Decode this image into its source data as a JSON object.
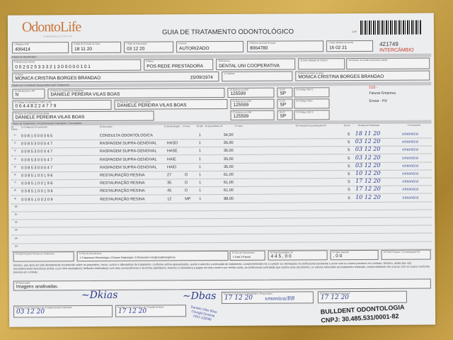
{
  "header": {
    "logo": "OdontoLife",
    "logo_tagline": "tranquilidade para você sorrir",
    "title": "GUIA DE TRATAMENTO ODONTOLÓGICO",
    "page_ref": "2-Nº",
    "guide_number": "421749",
    "guide_status": "INTERCÂMBIO"
  },
  "fields": {
    "registro_ans": {
      "label": "1-Registro ANS",
      "value": "406414"
    },
    "data_emissao": {
      "label": "3-Data de Emissão da Guia",
      "value": "18 11 20"
    },
    "data_autorizacao": {
      "label": "4-Data da Autorização",
      "value": "03 12 20"
    },
    "senha": {
      "label": "5-Senha",
      "value": "AUTORIZADO"
    },
    "guia_principal": {
      "label": "6-Número da Guia Principal",
      "value": "8064780"
    },
    "validade_senha": {
      "label": "7-Data Validade da Senha",
      "value": "16 02 21"
    },
    "carteira": {
      "label": "8-Número da Carteira",
      "value": "0 0 2 0 2 5 3 3 3 2 1 3 0 0 0 0 0 1 0 1"
    },
    "plano": {
      "label": "9-Plano",
      "value": "POS REDE PRESTADORA"
    },
    "empresa": {
      "label": "10-Empresa",
      "value": "DENTAL UNI  COOPERATIVA"
    },
    "validade_carteira": {
      "label": "11-Data Validade da Carteira",
      "value": ""
    },
    "cartao_sus": {
      "label": "12-Número do Cartão Nacional de Saúde",
      "value": ""
    },
    "nome": {
      "label": "13-Nome",
      "value": "MONICA CRISTINA BORGES BRANDAO"
    },
    "nascimento": "15/09/1974",
    "telefone": {
      "label": "14-Telefone",
      "value": ""
    },
    "titular": {
      "label": "15-Nome do titular do plano",
      "value": "MONICA CRISTINA BORGES BRANDAO"
    },
    "atendimento_rn": {
      "label": "16-Atendimento a RN",
      "value": "N"
    },
    "profissional_solicitante": {
      "label": "17-Nome do Profissional Solicitante",
      "value": "DANIELE PEREIRA VILAS BOAS"
    },
    "cro": {
      "label": "18-Número no CRO",
      "value": "125599"
    },
    "uf": {
      "label": "19-UF",
      "value": "SP"
    },
    "cbo": {
      "label": "20-Código CBO S",
      "value": ""
    },
    "codigo_operadora": {
      "label": "21-Código na Operadora / CNPJ / CPF",
      "value": "0 6 4 4 8 2 2 4 7 7 9"
    },
    "contratado_executante": {
      "label": "22-Nome do Contratado Executante",
      "value": "DANIELE PEREIRA VILAS BOAS"
    },
    "cro2": {
      "label": "23-Número no CRO",
      "value": "125599"
    },
    "uf2": {
      "label": "24-UF",
      "value": "SP"
    },
    "cnes": {
      "label": "25-Código CNES",
      "value": ""
    },
    "profissional_executante": {
      "label": "26-Nome do Profissional Executante",
      "value": "DANIELE PEREIRA VILAS BOAS"
    },
    "cro3": {
      "label": "27-Número no CRO",
      "value": "125599"
    },
    "uf3": {
      "label": "28-UF",
      "value": "SP"
    },
    "cbo3": {
      "label": "29-Código CBO S",
      "value": ""
    },
    "side_notes": [
      "D25 -",
      "Faturar Empresa",
      "Enviar - RX"
    ]
  },
  "sections": {
    "beneficiario": "Dados do Beneficiário",
    "contratado": "Dados do Contratado Responsável pelo Tratamento",
    "plano_tratamento": "Plano de Tratamento / Procedimentos Solicitados / Executados"
  },
  "table": {
    "headers": [
      "30-Tabela",
      "31-Código do Procedimento",
      "32-Descrição",
      "33-Dente/Região",
      "34-Face",
      "35-Qtd",
      "36-Quantidade US",
      "37-Valor",
      "38-Franquia/Co-participação R$",
      "39-Aut",
      "40-Data de Realização",
      "41-Assinatura"
    ],
    "rows": [
      {
        "code": "0 0 8 1 0 0 0 0 6 5",
        "desc": "CONSULTA ODONTOLOGICA",
        "region": "",
        "face": "",
        "qty": "1",
        "value": "34,00",
        "aut": "S",
        "date": "18 11 20",
        "sign": "xmonica"
      },
      {
        "code": "0 0 8 5 3 0 0 0 4 7",
        "desc": "RASPAGEM SUPRA-GENGIVAL",
        "region": "HASD",
        "face": "",
        "qty": "1",
        "value": "35,00",
        "aut": "S",
        "date": "03 12 20",
        "sign": "xmonica"
      },
      {
        "code": "0 0 8 5 3 0 0 0 4 7",
        "desc": "RASPAGEM SUPRA-GENGIVAL",
        "region": "HASE",
        "face": "",
        "qty": "1",
        "value": "35,00",
        "aut": "S",
        "date": "03 12 20",
        "sign": "xmonica"
      },
      {
        "code": "0 0 8 5 3 0 0 0 4 7",
        "desc": "RASPAGEM SUPRA-GENGIVAL",
        "region": "HAIE",
        "face": "",
        "qty": "1",
        "value": "35,00",
        "aut": "S",
        "date": "03 12 20",
        "sign": "xmonica"
      },
      {
        "code": "0 0 8 5 3 0 0 0 4 7",
        "desc": "RASPAGEM SUPRA-GENGIVAL",
        "region": "HAID",
        "face": "",
        "qty": "1",
        "value": "35,00",
        "aut": "S",
        "date": "03 12 20",
        "sign": "xmonica"
      },
      {
        "code": "0 0 8 5 1 0 0 1 9 6",
        "desc": "RESTAURAÇÃO RESINA",
        "region": "27",
        "face": "O",
        "qty": "1",
        "value": "61,00",
        "aut": "S",
        "date": "10 12 20",
        "sign": "xmonica"
      },
      {
        "code": "0 0 8 5 1 0 0 1 9 6",
        "desc": "RESTAURAÇÃO RESINA",
        "region": "35",
        "face": "D",
        "qty": "1",
        "value": "61,00",
        "aut": "S",
        "date": "17 12 20",
        "sign": "xmonica"
      },
      {
        "code": "0 0 8 5 1 0 0 1 9 6",
        "desc": "RESTAURAÇÃO RESINA",
        "region": "45",
        "face": "D",
        "qty": "1",
        "value": "61,00",
        "aut": "S",
        "date": "17 12 20",
        "sign": "xmonica"
      },
      {
        "code": "0 0 8 5 1 0 0 2 0 9",
        "desc": "RESTAURAÇÃO RESINA",
        "region": "12",
        "face": "MP",
        "qty": "1",
        "value": "88,00",
        "aut": "S",
        "date": "10 12 20",
        "sign": "xmonica"
      }
    ]
  },
  "footer": {
    "termino_label": "42-Data Provável Término do Tratamento",
    "tipo_atendimento_label": "44-Tipo de Atendimento",
    "tipo_atendimento_options": "1-Tratamento Odontológico  2-Exame Radiológico  3-Ortodontia  4-Urgência/Emergência",
    "tipo_faturamento_label": "45-Tipo de Faturamento",
    "tipo_faturamento_options": "1-Total  2-Parcial",
    "total_us_label": "46-Total Quantidade US",
    "total_us": "4 4 5 , 0 0",
    "valor_total_label": "47-Valor Total R$",
    "valor_total": ", 0 0",
    "franquia_label": "48-Total Franquia / Co-participação R$",
    "franquia": "",
    "declaration": "Declaro, que após ter sido devidamente esclarecido sobre os propósitos, riscos, custos e alternativas de tratamento, conforme acima apresentados, aceito e autorizo a execução do tratamento, comprometendo-me a cumprir as orientações do profissional assistente e arcar com os custos previstos em contrato. Declaro, ainda que o(s) procedimento(s) descrito(s) acima, e por mim assinado(s), foi/foram realizado(s) com meu consentimento e da forma satisfatória. Autorizo a Operadora a pagar em meu nome e por minha conta, ao profissional contratado que assina esse documento, os valores referentes ao tratamento realizado, comprometendo-me a arcar com os custos conforme previsto em contrato.",
    "observacao_label": "49-Observação",
    "observacao": "Imagens analisadas.",
    "data_solicitante_label": "50-Data, local e Assinatura do Cirurgião-Dentista Solicitante",
    "data_solicitante": "03 12 20",
    "data_executante_label": "51-Data, local e Assinatura do Cirurgião-Dentista",
    "data_executante": "17 12 20",
    "data_beneficiario_label": "52-Data e Assinatura do Beneficiário / Responsável",
    "data_beneficiario": "17 12 20",
    "beneficiario_sign": "xmonica/BB",
    "data_empresa_label": "53-Data e Carimbo da Empresa",
    "data_empresa": "17 12 20",
    "stamp": [
      "Daniele Vilas Bôas",
      "Cirurgiã Dentista",
      "CRO 125599"
    ],
    "company": "BULLDENT ODONTOLOGIA",
    "cnpj": "CNPJ: 30.485.531/0001-82"
  }
}
